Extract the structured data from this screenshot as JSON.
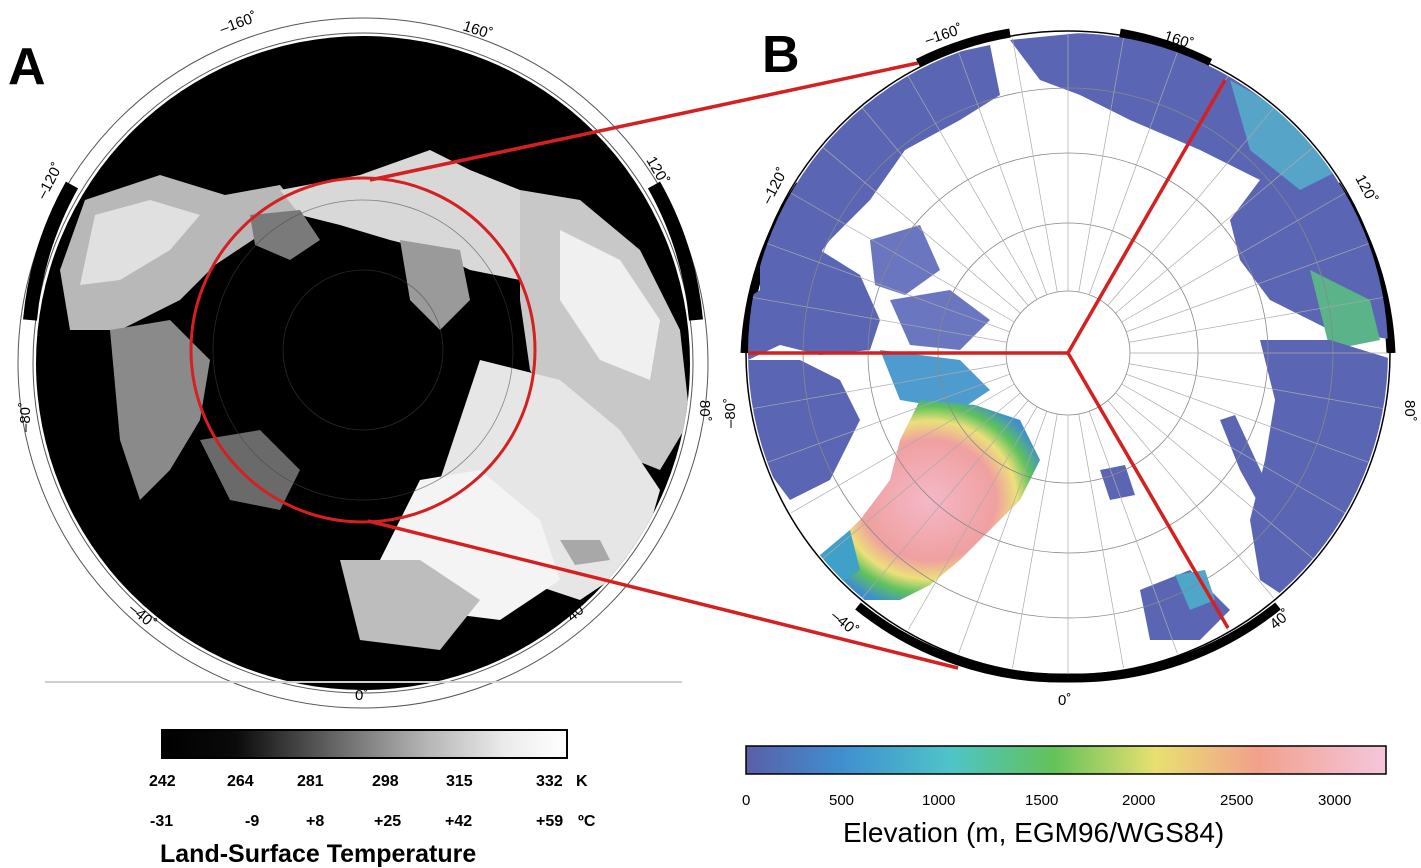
{
  "panel_a": {
    "letter": "A",
    "longitude_labels": [
      "–160˚",
      "160˚",
      "–120˚",
      "120˚",
      "–80˚",
      "80˚",
      "–40˚",
      "40˚",
      "0˚"
    ],
    "colorbar": {
      "kelvin_ticks": [
        "242",
        "264",
        "281",
        "298",
        "315",
        "332"
      ],
      "kelvin_unit": "K",
      "celsius_ticks": [
        "-31",
        "-9",
        "+8",
        "+25",
        "+42",
        "+59"
      ],
      "celsius_unit": "ºC",
      "title": "Land-Surface Temperature",
      "range_kelvin": [
        242,
        332
      ],
      "gradient": [
        "#000000",
        "#0a0a0a",
        "#6e6e6e",
        "#b4b4b4",
        "#ececec",
        "#ffffff"
      ]
    }
  },
  "panel_b": {
    "letter": "B",
    "longitude_labels": [
      "–160˚",
      "160˚",
      "–120˚",
      "120˚",
      "–80˚",
      "80˚",
      "–40˚",
      "40˚",
      "0˚"
    ],
    "colorbar": {
      "ticks": [
        "0",
        "500",
        "1000",
        "1500",
        "2000",
        "2500",
        "3000"
      ],
      "title": "Elevation (m, EGM96/WGS84)",
      "range_m": [
        0,
        3250
      ],
      "gradient": [
        "#5a5fa8",
        "#3f8fd0",
        "#4ec4c8",
        "#63c25a",
        "#e8e070",
        "#f2a08c",
        "#f4c6dc"
      ]
    }
  },
  "colors": {
    "highlight": "#d42020",
    "land_low": "#5a66b4",
    "ice_high": "#f3a7b8"
  }
}
